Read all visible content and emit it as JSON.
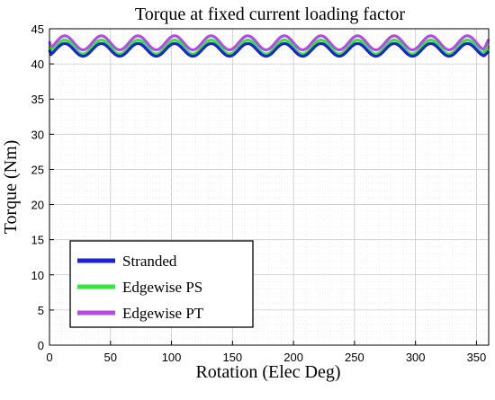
{
  "chart_data": {
    "type": "line",
    "title": "Torque at fixed current loading factor",
    "xlabel": "Rotation (Elec Deg)",
    "ylabel": "Torque (Nm)",
    "xlim": [
      0,
      360
    ],
    "ylim": [
      0,
      45
    ],
    "xticks": [
      0,
      50,
      100,
      150,
      200,
      250,
      300,
      350
    ],
    "yticks": [
      0,
      5,
      10,
      15,
      20,
      25,
      30,
      35,
      40,
      45
    ],
    "grid": true,
    "legend_position": "bottom-left",
    "ripple_period_deg": 30,
    "series": [
      {
        "name": "Stranded",
        "color": "#1a24d6",
        "mean": 42.0,
        "amplitude": 0.9,
        "start": 42.0,
        "end": 41.8
      },
      {
        "name": "Edgewise PS",
        "color": "#33e63d",
        "mean": 42.4,
        "amplitude": 1.0,
        "start": 42.5,
        "end": 42.6
      },
      {
        "name": "Edgewise PT",
        "color": "#b44be6",
        "mean": 43.0,
        "amplitude": 1.0,
        "start": 43.2,
        "end": 43.5
      }
    ]
  }
}
